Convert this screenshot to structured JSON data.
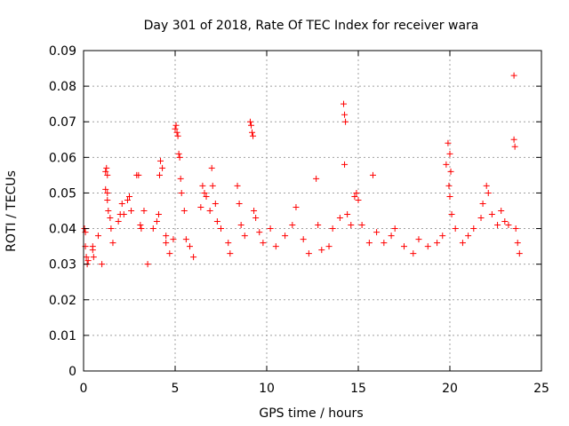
{
  "chart_data": {
    "type": "scatter",
    "title": "Day 301 of 2018, Rate Of TEC Index for receiver wara",
    "xlabel": "GPS time / hours",
    "ylabel": "ROTI / TECUs",
    "xlim": [
      0,
      25
    ],
    "ylim": [
      0,
      0.09
    ],
    "x_ticks": [
      0,
      5,
      10,
      15,
      20,
      25
    ],
    "x_tick_labels": [
      "0",
      "5",
      "10",
      "15",
      "20",
      "25"
    ],
    "y_ticks": [
      0,
      0.01,
      0.02,
      0.03,
      0.04,
      0.05,
      0.06,
      0.07,
      0.08,
      0.09
    ],
    "y_tick_labels": [
      "0",
      "0.01",
      "0.02",
      "0.03",
      "0.04",
      "0.05",
      "0.06",
      "0.07",
      "0.08",
      "0.09"
    ],
    "grid": true,
    "marker": "+",
    "color": "#ff0000",
    "series": [
      {
        "name": "ROTI",
        "points": [
          [
            0.05,
            0.04
          ],
          [
            0.1,
            0.039
          ],
          [
            0.1,
            0.035
          ],
          [
            0.15,
            0.032
          ],
          [
            0.2,
            0.03
          ],
          [
            0.25,
            0.031
          ],
          [
            0.5,
            0.035
          ],
          [
            0.5,
            0.034
          ],
          [
            0.55,
            0.032
          ],
          [
            0.8,
            0.038
          ],
          [
            1.0,
            0.03
          ],
          [
            1.2,
            0.056
          ],
          [
            1.25,
            0.057
          ],
          [
            1.3,
            0.055
          ],
          [
            1.2,
            0.051
          ],
          [
            1.3,
            0.05
          ],
          [
            1.3,
            0.048
          ],
          [
            1.35,
            0.045
          ],
          [
            1.45,
            0.043
          ],
          [
            1.5,
            0.04
          ],
          [
            1.6,
            0.036
          ],
          [
            1.9,
            0.042
          ],
          [
            2.0,
            0.044
          ],
          [
            2.1,
            0.047
          ],
          [
            2.2,
            0.044
          ],
          [
            2.4,
            0.048
          ],
          [
            2.5,
            0.049
          ],
          [
            2.6,
            0.045
          ],
          [
            2.9,
            0.055
          ],
          [
            3.0,
            0.055
          ],
          [
            3.1,
            0.041
          ],
          [
            3.15,
            0.04
          ],
          [
            3.3,
            0.045
          ],
          [
            3.5,
            0.03
          ],
          [
            3.8,
            0.04
          ],
          [
            4.0,
            0.042
          ],
          [
            4.1,
            0.044
          ],
          [
            4.15,
            0.055
          ],
          [
            4.2,
            0.059
          ],
          [
            4.3,
            0.057
          ],
          [
            4.5,
            0.038
          ],
          [
            4.5,
            0.036
          ],
          [
            4.7,
            0.033
          ],
          [
            4.9,
            0.037
          ],
          [
            5.0,
            0.068
          ],
          [
            5.05,
            0.069
          ],
          [
            5.1,
            0.067
          ],
          [
            5.15,
            0.066
          ],
          [
            5.2,
            0.061
          ],
          [
            5.25,
            0.06
          ],
          [
            5.3,
            0.054
          ],
          [
            5.35,
            0.05
          ],
          [
            5.5,
            0.045
          ],
          [
            5.6,
            0.037
          ],
          [
            5.8,
            0.035
          ],
          [
            6.0,
            0.032
          ],
          [
            6.4,
            0.046
          ],
          [
            6.5,
            0.052
          ],
          [
            6.6,
            0.05
          ],
          [
            6.7,
            0.049
          ],
          [
            6.9,
            0.045
          ],
          [
            7.0,
            0.057
          ],
          [
            7.05,
            0.052
          ],
          [
            7.2,
            0.047
          ],
          [
            7.3,
            0.042
          ],
          [
            7.5,
            0.04
          ],
          [
            7.9,
            0.036
          ],
          [
            8.0,
            0.033
          ],
          [
            8.4,
            0.052
          ],
          [
            8.5,
            0.047
          ],
          [
            8.6,
            0.041
          ],
          [
            8.8,
            0.038
          ],
          [
            9.1,
            0.07
          ],
          [
            9.15,
            0.069
          ],
          [
            9.2,
            0.067
          ],
          [
            9.25,
            0.066
          ],
          [
            9.3,
            0.045
          ],
          [
            9.4,
            0.043
          ],
          [
            9.6,
            0.039
          ],
          [
            9.8,
            0.036
          ],
          [
            10.2,
            0.04
          ],
          [
            10.5,
            0.035
          ],
          [
            11.0,
            0.038
          ],
          [
            11.4,
            0.041
          ],
          [
            11.6,
            0.046
          ],
          [
            12.0,
            0.037
          ],
          [
            12.3,
            0.033
          ],
          [
            12.7,
            0.054
          ],
          [
            12.8,
            0.041
          ],
          [
            13.0,
            0.034
          ],
          [
            13.4,
            0.035
          ],
          [
            13.6,
            0.04
          ],
          [
            14.0,
            0.043
          ],
          [
            14.2,
            0.075
          ],
          [
            14.25,
            0.072
          ],
          [
            14.3,
            0.07
          ],
          [
            14.25,
            0.058
          ],
          [
            14.4,
            0.044
          ],
          [
            14.6,
            0.041
          ],
          [
            14.8,
            0.049
          ],
          [
            14.9,
            0.05
          ],
          [
            15.0,
            0.048
          ],
          [
            15.2,
            0.041
          ],
          [
            15.6,
            0.036
          ],
          [
            15.8,
            0.055
          ],
          [
            16.0,
            0.039
          ],
          [
            16.4,
            0.036
          ],
          [
            16.8,
            0.038
          ],
          [
            17.0,
            0.04
          ],
          [
            17.5,
            0.035
          ],
          [
            18.0,
            0.033
          ],
          [
            18.3,
            0.037
          ],
          [
            18.8,
            0.035
          ],
          [
            19.3,
            0.036
          ],
          [
            19.6,
            0.038
          ],
          [
            19.8,
            0.058
          ],
          [
            19.9,
            0.064
          ],
          [
            20.0,
            0.061
          ],
          [
            20.05,
            0.056
          ],
          [
            19.95,
            0.052
          ],
          [
            20.0,
            0.049
          ],
          [
            20.1,
            0.044
          ],
          [
            20.3,
            0.04
          ],
          [
            20.7,
            0.036
          ],
          [
            21.0,
            0.038
          ],
          [
            21.3,
            0.04
          ],
          [
            21.7,
            0.043
          ],
          [
            21.8,
            0.047
          ],
          [
            22.0,
            0.052
          ],
          [
            22.1,
            0.05
          ],
          [
            22.3,
            0.044
          ],
          [
            22.6,
            0.041
          ],
          [
            22.8,
            0.045
          ],
          [
            23.0,
            0.042
          ],
          [
            23.2,
            0.041
          ],
          [
            23.5,
            0.083
          ],
          [
            23.5,
            0.065
          ],
          [
            23.55,
            0.063
          ],
          [
            23.6,
            0.04
          ],
          [
            23.7,
            0.036
          ],
          [
            23.8,
            0.033
          ]
        ]
      }
    ]
  }
}
